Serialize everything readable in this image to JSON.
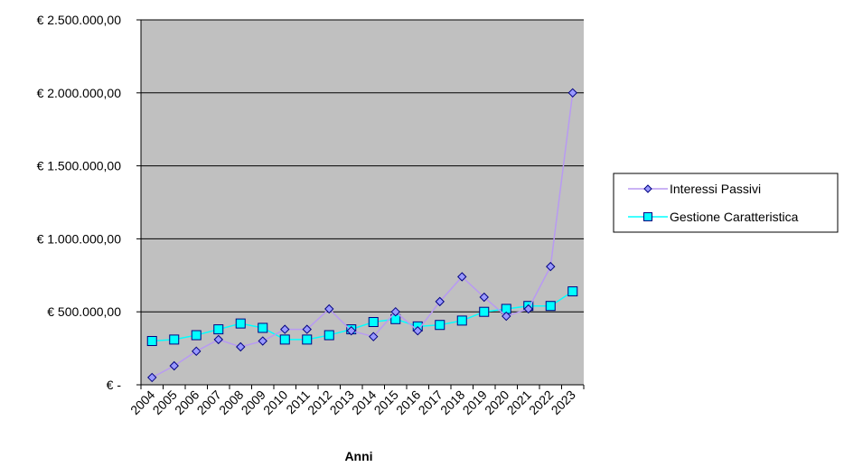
{
  "chart_data": {
    "type": "line",
    "title": "",
    "xlabel": "Anni",
    "ylabel": "",
    "ylim": [
      0,
      2500000
    ],
    "y_ticks": [
      0,
      500000,
      1000000,
      1500000,
      2000000,
      2500000
    ],
    "y_tick_labels": [
      "€ -",
      "€ 500.000,00",
      "€ 1.000.000,00",
      "€ 1.500.000,00",
      "€ 2.000.000,00",
      "€ 2.500.000,00"
    ],
    "categories": [
      "2004",
      "2005",
      "2006",
      "2007",
      "2008",
      "2009",
      "2010",
      "2011",
      "2012",
      "2013",
      "2014",
      "2015",
      "2016",
      "2017",
      "2018",
      "2019",
      "2020",
      "2021",
      "2022",
      "2023"
    ],
    "grid": true,
    "plot_background": "#c0c0c0",
    "legend_position": "right",
    "series": [
      {
        "name": "Interessi Passivi",
        "color": "#b89af2",
        "marker": "diamond",
        "marker_fill": "#9999ff",
        "marker_stroke": "#000080",
        "values": [
          50000,
          130000,
          230000,
          310000,
          260000,
          300000,
          380000,
          380000,
          520000,
          370000,
          330000,
          500000,
          370000,
          570000,
          740000,
          600000,
          470000,
          520000,
          810000,
          2000000
        ]
      },
      {
        "name": "Gestione Caratteristica",
        "color": "#00ffff",
        "marker": "square",
        "marker_fill": "#00ffff",
        "marker_stroke": "#000080",
        "values": [
          300000,
          310000,
          340000,
          380000,
          420000,
          390000,
          310000,
          310000,
          340000,
          380000,
          430000,
          450000,
          400000,
          410000,
          440000,
          500000,
          520000,
          540000,
          540000,
          640000
        ]
      }
    ]
  }
}
